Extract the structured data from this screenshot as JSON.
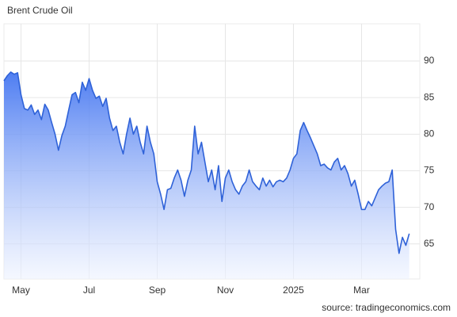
{
  "chart_data": {
    "type": "area",
    "title": "Brent Crude Oil",
    "source": "source: tradingeconomics.com",
    "color": "#2f62d8",
    "grid": true,
    "categories": [
      null,
      null,
      null,
      null,
      null,
      "May",
      null,
      null,
      null,
      null,
      null,
      null,
      null,
      null,
      null,
      null,
      null,
      null,
      null,
      null,
      null,
      null,
      null,
      null,
      null,
      "Jul",
      null,
      null,
      null,
      null,
      null,
      null,
      null,
      null,
      null,
      null,
      null,
      null,
      null,
      null,
      null,
      null,
      null,
      null,
      null,
      "Sep",
      null,
      null,
      null,
      null,
      null,
      null,
      null,
      null,
      null,
      null,
      null,
      null,
      null,
      null,
      null,
      null,
      null,
      null,
      null,
      "Nov",
      null,
      null,
      null,
      null,
      null,
      null,
      null,
      null,
      null,
      null,
      null,
      null,
      null,
      null,
      null,
      null,
      null,
      null,
      null,
      "2025",
      null,
      null,
      null,
      null,
      null,
      null,
      null,
      null,
      null,
      null,
      null,
      null,
      null,
      null,
      null,
      null,
      null,
      null,
      null,
      "Mar",
      null,
      null,
      null,
      null,
      null,
      null,
      null,
      null,
      null,
      null,
      null,
      null,
      null,
      null
    ],
    "values": [
      87.3,
      88.0,
      88.5,
      88.2,
      88.4,
      85.4,
      83.5,
      83.3,
      84.0,
      82.7,
      83.3,
      82.0,
      84.1,
      83.3,
      81.6,
      80.0,
      77.8,
      79.8,
      81.1,
      83.3,
      85.4,
      85.7,
      84.3,
      87.1,
      86.0,
      87.6,
      86.0,
      84.9,
      85.2,
      83.8,
      84.9,
      82.2,
      80.5,
      81.1,
      78.9,
      77.3,
      80.0,
      82.2,
      80.0,
      81.1,
      78.9,
      77.3,
      81.1,
      78.9,
      77.3,
      73.5,
      71.8,
      69.7,
      72.4,
      72.6,
      74.0,
      75.1,
      73.7,
      71.5,
      73.7,
      75.1,
      81.1,
      77.3,
      78.9,
      76.2,
      73.5,
      75.1,
      72.4,
      75.7,
      70.8,
      74.0,
      75.1,
      73.5,
      72.4,
      71.8,
      72.9,
      73.5,
      75.1,
      73.5,
      72.9,
      72.4,
      74.0,
      72.9,
      73.7,
      72.8,
      73.5,
      73.7,
      73.5,
      74.0,
      75.1,
      76.7,
      77.3,
      80.5,
      81.6,
      80.5,
      79.5,
      78.4,
      77.3,
      75.7,
      75.9,
      75.4,
      75.1,
      76.2,
      76.7,
      75.1,
      75.7,
      74.6,
      72.9,
      73.7,
      71.8,
      69.7,
      69.7,
      70.8,
      70.2,
      71.3,
      72.4,
      72.9,
      73.3,
      73.5,
      75.1,
      67.0,
      63.7,
      65.9,
      64.8,
      66.4
    ],
    "ylim": [
      60.2,
      95.1
    ],
    "yticks": [
      65,
      70,
      75,
      80,
      85,
      90
    ]
  }
}
